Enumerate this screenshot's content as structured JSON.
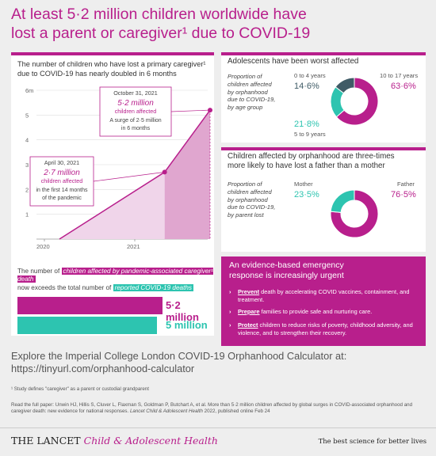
{
  "title": {
    "line1": "At least 5·2 million children worldwide have",
    "line2": "lost a parent or caregiver¹ due to COVID-19"
  },
  "chart_panel": {
    "caption": "The number of children who have lost a primary caregiver¹ due to COVID-19 has nearly doubled in 6 months",
    "chart_data": {
      "type": "area",
      "x_ticks": [
        "2020",
        "2021"
      ],
      "y_ticks": [
        "6m",
        "5",
        "4",
        "3",
        "2",
        "1"
      ],
      "ylim": [
        0,
        6
      ],
      "points": [
        {
          "x": "2020-03",
          "y": 0
        },
        {
          "x": "2021-04-30",
          "y": 2.7
        },
        {
          "x": "2021-10-31",
          "y": 5.2
        }
      ],
      "annotations": [
        {
          "date": "April 30, 2021",
          "value": "2·7 million",
          "sub": "children affected",
          "note1": "in the first 14 months",
          "note2": "of the pandemic"
        },
        {
          "date": "October 31, 2021",
          "value": "5·2 million",
          "sub": "children affected",
          "note1": "A surge of 2·5 million",
          "note2": "in 6 months"
        }
      ]
    }
  },
  "comparison": {
    "line1_pre": "The number of",
    "line1_tag": "children affected by pandemic-associated caregiver¹ death",
    "line2_pre": "now exceeds the total number of",
    "line2_tag": "reported COVID-19 deaths",
    "bars": [
      {
        "label": "5·2 million",
        "value": 5.2
      },
      {
        "label": "5 million",
        "value": 5.0
      }
    ]
  },
  "age_panel": {
    "heading": "Adolescents have been worst affected",
    "note": [
      "Proportion of",
      "children affected",
      "by orphanhood",
      "due to COVID-19,",
      "by age group"
    ],
    "segments": [
      {
        "label": "0 to 4 years",
        "pct": "14·6%",
        "value": 14.6,
        "color": "#3f5b66"
      },
      {
        "label": "5 to 9 years",
        "pct": "21·8%",
        "value": 21.8,
        "color": "#2dc4b0"
      },
      {
        "label": "10 to 17 years",
        "pct": "63·6%",
        "value": 63.6,
        "color": "#b81f8c"
      }
    ]
  },
  "parent_panel": {
    "heading1": "Children affected by orphanhood are three-times",
    "heading2": "more likely to have lost a father than a mother",
    "note": [
      "Proportion of",
      "children affected",
      "by orphanhood",
      "due to COVID-19,",
      "by parent lost"
    ],
    "segments": [
      {
        "label": "Mother",
        "pct": "23·5%",
        "value": 23.5,
        "color": "#2dc4b0"
      },
      {
        "label": "Father",
        "pct": "76·5%",
        "value": 76.5,
        "color": "#b81f8c"
      }
    ]
  },
  "evidence": {
    "title1": "An evidence-based emergency",
    "title2": "response is increasingly urgent",
    "items": [
      {
        "verb": "Prevent",
        "rest": " death by accelerating COVID vaccines, containment, and treatment."
      },
      {
        "verb": "Prepare",
        "rest": " families to provide safe and nurturing care."
      },
      {
        "verb": "Protect",
        "rest": " children to reduce risks of poverty, childhood adversity, and violence, and to strengthen their recovery."
      }
    ]
  },
  "explore": {
    "line1": "Explore the Imperial College London COVID-19 Orphanhood Calculator at:",
    "line2": "https://tinyurl.com/orphanhood-calculator"
  },
  "footnote": "¹ Study defines \"caregiver\" as a parent or custodial grandparent",
  "citation": {
    "main": "Read the full paper: Unwin HJ, Hillis S, Cluver L, Flaxman S, Goldman P, Butchart A, et al. More than 5·2 million children affected by global surges in COVID-associated orphanhood and caregiver death: new evidence for national responses.",
    "journal": "Lancet Child & Adolescent Health",
    "tail": " 2022, published online Feb 24"
  },
  "brand": {
    "lancet": "THE LANCET",
    "journal": "Child & Adolescent Health",
    "slogan": "The best science for better lives"
  },
  "colors": {
    "magenta": "#b81f8c",
    "teal": "#2dc4b0",
    "slate": "#3f5b66"
  }
}
